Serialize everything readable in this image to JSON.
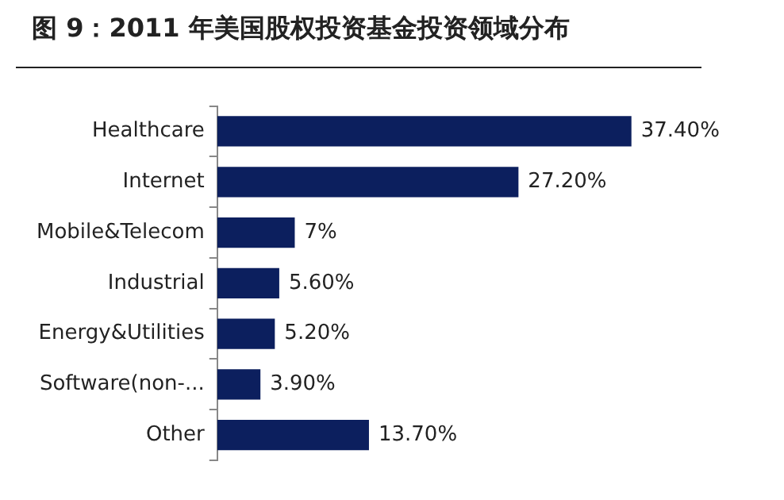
{
  "chart_data": {
    "type": "bar",
    "orientation": "horizontal",
    "title": "图 9：2011 年美国股权投资基金投资领域分布",
    "categories": [
      "Healthcare",
      "Internet",
      "Mobile&Telecom",
      "Industrial",
      "Energy&Utilities",
      "Software(non-...",
      "Other"
    ],
    "values": [
      37.4,
      27.2,
      7,
      5.6,
      5.2,
      3.9,
      13.7
    ],
    "value_labels": [
      "37.40%",
      "27.20%",
      "7%",
      "5.60%",
      "5.20%",
      "3.90%",
      "13.70%"
    ],
    "color": "#0c1f5e",
    "legend": false,
    "tick_labels": "y"
  }
}
